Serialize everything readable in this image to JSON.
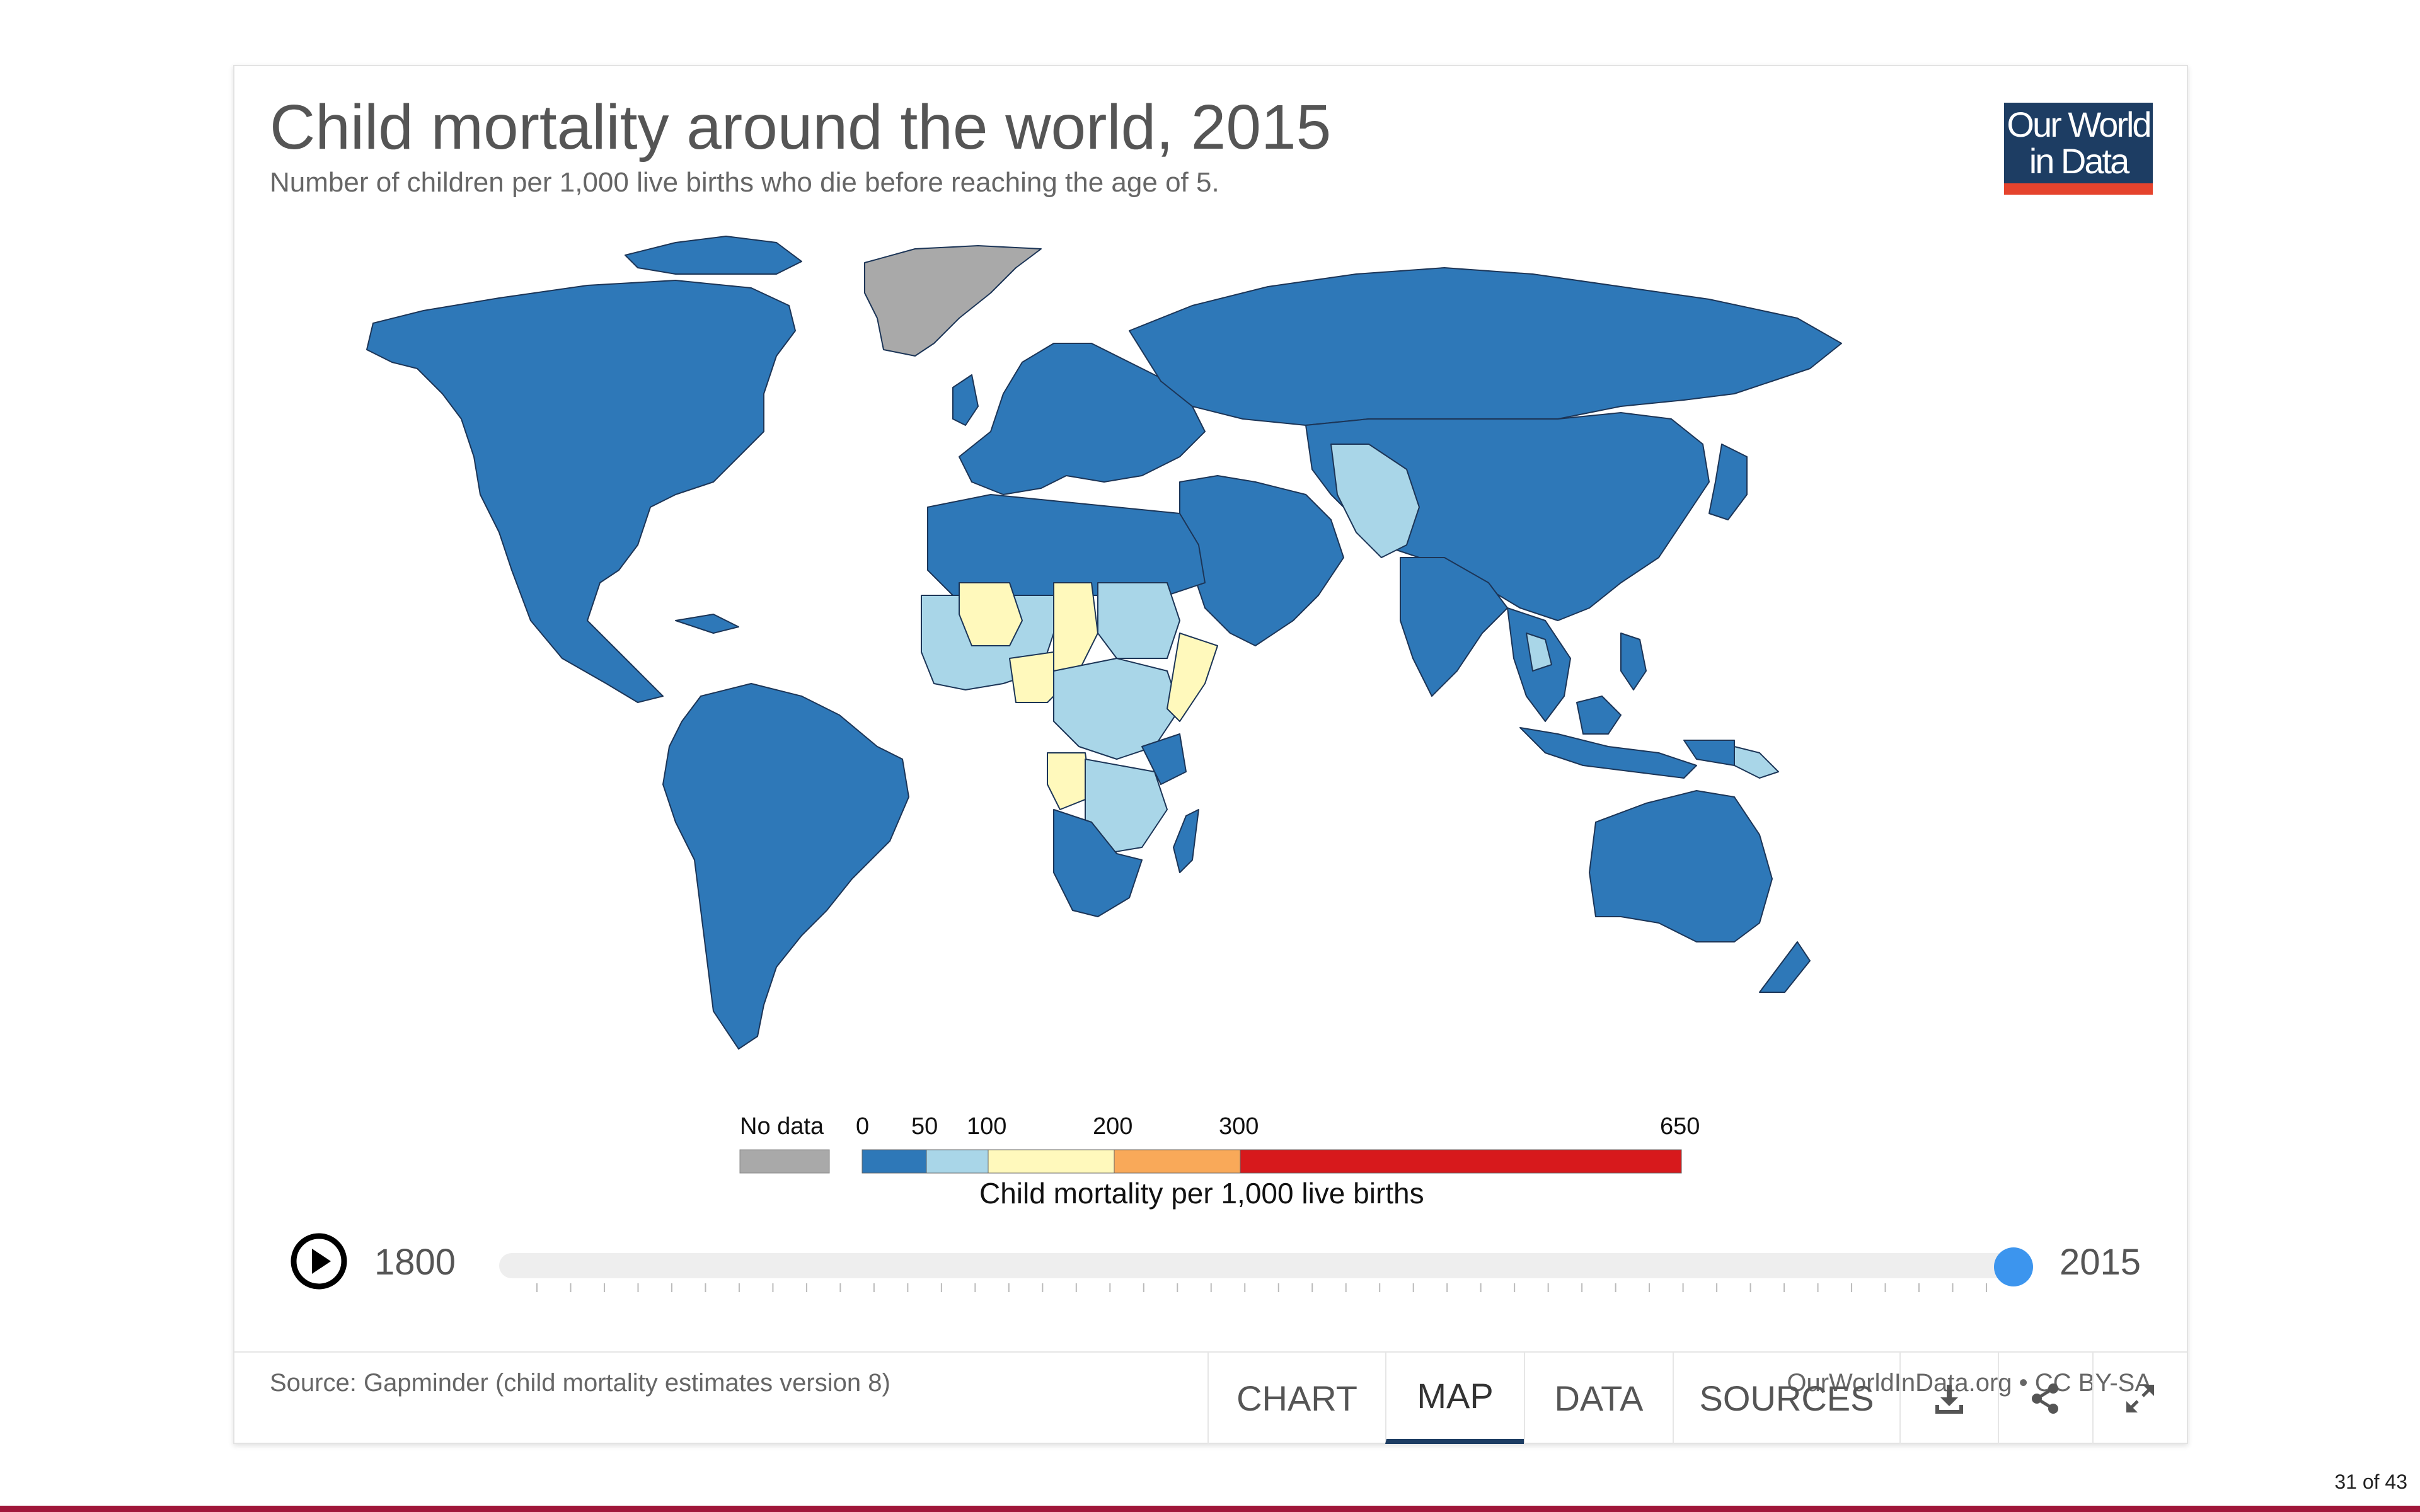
{
  "chart": {
    "title": "Child mortality around the world, 2015",
    "subtitle": "Number of children per 1,000 live births who die before reaching the age of 5.",
    "logo_text": [
      "Our World",
      "in Data"
    ]
  },
  "legend": {
    "no_data_label": "No data",
    "no_data_color": "#a9a9a9",
    "title": "Child mortality per 1,000 live births",
    "bins": [
      {
        "from": 0,
        "to": 50,
        "color": "#2e78b8"
      },
      {
        "from": 50,
        "to": 100,
        "color": "#a9d6e8"
      },
      {
        "from": 100,
        "to": 200,
        "color": "#fff9bc"
      },
      {
        "from": 200,
        "to": 300,
        "color": "#f9a959"
      },
      {
        "from": 300,
        "to": 650,
        "color": "#d7191c"
      }
    ],
    "tick_labels": [
      "0",
      "50",
      "100",
      "200",
      "300",
      "650"
    ]
  },
  "timeline": {
    "start_year": "1800",
    "end_year": "2015",
    "selected_year": 2015
  },
  "source": "Source: Gapminder (child mortality estimates version 8)",
  "credit": "OurWorldInData.org • CC BY-SA",
  "tabs": [
    {
      "label": "CHART",
      "active": false
    },
    {
      "label": "MAP",
      "active": true
    },
    {
      "label": "DATA",
      "active": false
    },
    {
      "label": "SOURCES",
      "active": false
    }
  ],
  "icons": [
    "download-icon",
    "share-icon",
    "fullscreen-icon"
  ],
  "pager": "31 of 43"
}
